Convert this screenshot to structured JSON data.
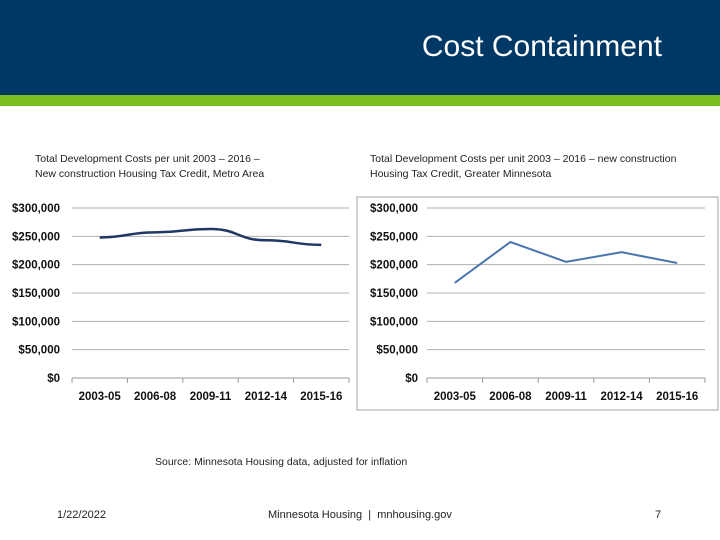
{
  "header": {
    "title": "Cost Containment",
    "bg_color": "#003865",
    "accent_color": "#78be20"
  },
  "chart_data": [
    {
      "type": "line",
      "title_line1": "Total Development Costs per unit 2003 – 2016 –",
      "title_line2": "New construction Housing Tax Credit, Metro Area",
      "categories": [
        "2003-05",
        "2006-08",
        "2009-11",
        "2012-14",
        "2015-16"
      ],
      "values": [
        248000,
        257000,
        263000,
        243000,
        235000
      ],
      "yticks": [
        "$0",
        "$50,000",
        "$100,000",
        "$150,000",
        "$200,000",
        "$250,000",
        "$300,000"
      ],
      "ylim": [
        0,
        300000
      ],
      "grid": true,
      "line_color": "#1f3864"
    },
    {
      "type": "line",
      "title_line1": "Total Development Costs per unit 2003 – 2016 – new construction",
      "title_line2": "Housing Tax Credit, Greater Minnesota",
      "categories": [
        "2003-05",
        "2006-08",
        "2009-11",
        "2012-14",
        "2015-16"
      ],
      "values": [
        168000,
        240000,
        205000,
        222000,
        203000
      ],
      "yticks": [
        "$0",
        "$50,000",
        "$100,000",
        "$150,000",
        "$200,000",
        "$250,000",
        "$300,000"
      ],
      "ylim": [
        0,
        300000
      ],
      "grid": true,
      "line_color": "#4a76b0"
    }
  ],
  "source": "Source: Minnesota Housing data, adjusted for inflation",
  "footer": {
    "date": "1/22/2022",
    "center": "Minnesota Housing  |  mnhousing.gov",
    "page": "7"
  }
}
